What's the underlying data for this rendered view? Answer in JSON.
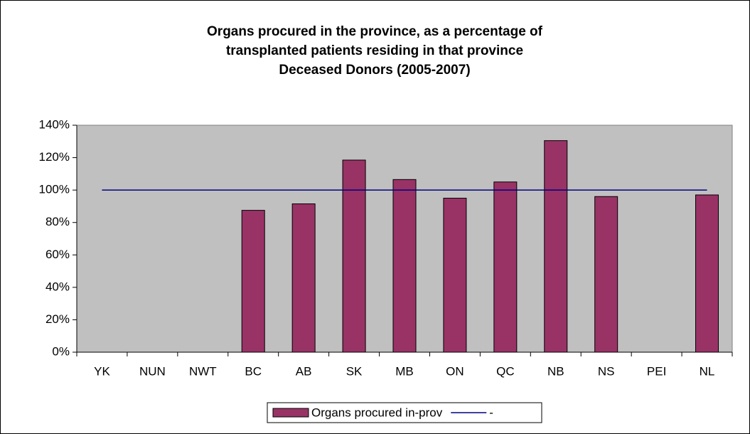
{
  "chart_data": {
    "type": "bar",
    "title": [
      "Organs procured in the province, as a percentage of",
      "transplanted patients residing in that province",
      "Deceased Donors (2005-2007)"
    ],
    "categories": [
      "YK",
      "NUN",
      "NWT",
      "BC",
      "AB",
      "SK",
      "MB",
      "ON",
      "QC",
      "NB",
      "NS",
      "PEI",
      "NL"
    ],
    "series": [
      {
        "name": "Organs procured in-prov",
        "type": "bar",
        "color": "#993366",
        "values": [
          null,
          null,
          null,
          87.5,
          91.5,
          118.5,
          106.5,
          95,
          105,
          130.5,
          96,
          null,
          97
        ]
      },
      {
        "name": "-",
        "type": "line",
        "color": "#000080",
        "values": [
          100,
          100,
          100,
          100,
          100,
          100,
          100,
          100,
          100,
          100,
          100,
          100,
          100
        ]
      }
    ],
    "ylim": [
      0,
      140
    ],
    "yticks": [
      {
        "value": 0,
        "label": "0%"
      },
      {
        "value": 20,
        "label": "20%"
      },
      {
        "value": 40,
        "label": "40%"
      },
      {
        "value": 60,
        "label": "60%"
      },
      {
        "value": 80,
        "label": "80%"
      },
      {
        "value": 100,
        "label": "100%"
      },
      {
        "value": 120,
        "label": "120%"
      },
      {
        "value": 140,
        "label": "140%"
      }
    ],
    "plot_background": "#c0c0c0",
    "legend": "bottom"
  }
}
